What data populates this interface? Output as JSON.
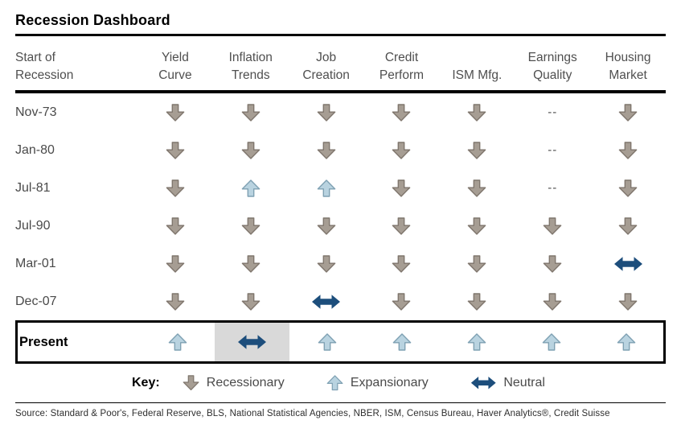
{
  "chart_data": {
    "type": "table",
    "title": "Recession Dashboard",
    "row_header": {
      "line1": "Start of",
      "line2": "Recession"
    },
    "columns": [
      {
        "line1": "Yield",
        "line2": "Curve"
      },
      {
        "line1": "Inflation",
        "line2": "Trends"
      },
      {
        "line1": "Job",
        "line2": "Creation"
      },
      {
        "line1": "Credit",
        "line2": "Perform"
      },
      {
        "line1": "",
        "line2": "ISM Mfg."
      },
      {
        "line1": "Earnings",
        "line2": "Quality"
      },
      {
        "line1": "Housing",
        "line2": "Market"
      }
    ],
    "rows": [
      {
        "label": "Nov-73",
        "cells": [
          "down",
          "down",
          "down",
          "down",
          "down",
          "na",
          "down"
        ]
      },
      {
        "label": "Jan-80",
        "cells": [
          "down",
          "down",
          "down",
          "down",
          "down",
          "na",
          "down"
        ]
      },
      {
        "label": "Jul-81",
        "cells": [
          "down",
          "up",
          "up",
          "down",
          "down",
          "na",
          "down"
        ]
      },
      {
        "label": "Jul-90",
        "cells": [
          "down",
          "down",
          "down",
          "down",
          "down",
          "down",
          "down"
        ]
      },
      {
        "label": "Mar-01",
        "cells": [
          "down",
          "down",
          "down",
          "down",
          "down",
          "down",
          "neutral"
        ]
      },
      {
        "label": "Dec-07",
        "cells": [
          "down",
          "down",
          "neutral",
          "down",
          "down",
          "down",
          "down"
        ]
      },
      {
        "label": "Present",
        "cells": [
          "up",
          "neutral",
          "up",
          "up",
          "up",
          "up",
          "up"
        ],
        "boxed": true,
        "highlighted_cell": 1
      }
    ],
    "na_text": "--",
    "legend_position": "bottom"
  },
  "key": {
    "label": "Key:",
    "items": [
      {
        "symbol": "down",
        "text": "Recessionary"
      },
      {
        "symbol": "up",
        "text": "Expansionary"
      },
      {
        "symbol": "neutral",
        "text": "Neutral"
      }
    ]
  },
  "source": "Source: Standard & Poor's, Federal Reserve, BLS, National Statistical Agencies, NBER, ISM, Census Bureau, Haver Analytics®, Credit Suisse",
  "colors": {
    "recessionary_fill": "#a69d93",
    "recessionary_edge": "#7f766d",
    "expansionary_fill": "#b9d3e0",
    "expansionary_edge": "#7fa1b3",
    "neutral_fill": "#1d4e7c",
    "highlight_bg": "#d9d9d9",
    "rule_black": "#000000",
    "text_gray": "#4f4f4f"
  }
}
